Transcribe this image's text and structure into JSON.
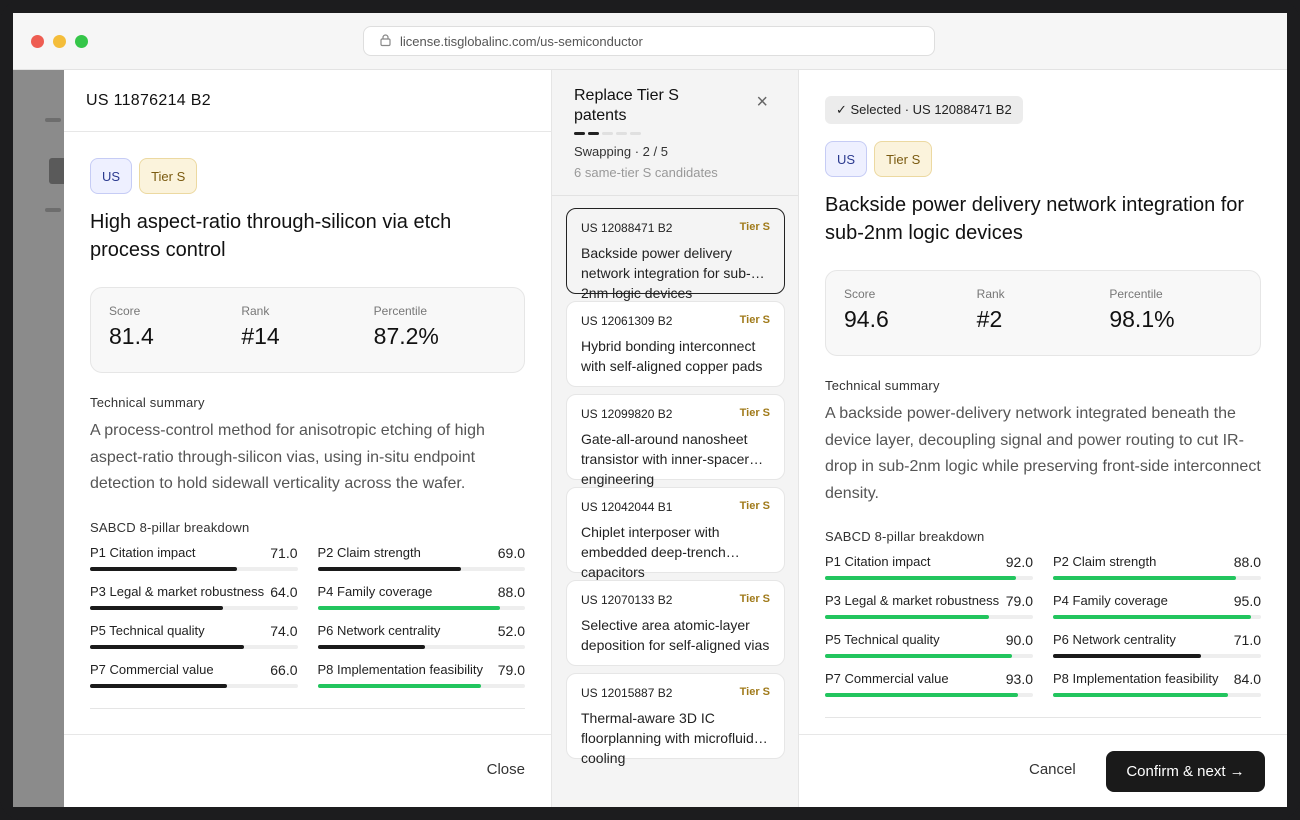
{
  "browser": {
    "url": "license.tisglobalinc.com/us-semiconductor"
  },
  "left": {
    "patent_id": "US 11876214 B2",
    "country_badge": "US",
    "tier_badge": "Tier S",
    "title": "High aspect-ratio through-silicon via etch process control",
    "stats": [
      {
        "label": "Score",
        "value": "81.4"
      },
      {
        "label": "Rank",
        "value": "#14"
      },
      {
        "label": "Percentile",
        "value": "87.2%"
      }
    ],
    "summary_heading": "Technical summary",
    "summary": "A process-control method for anisotropic etching of high aspect-ratio through-silicon vias, using in-situ endpoint detection to hold sidewall verticality across the wafer.",
    "pillars_heading": "SABCD 8-pillar breakdown",
    "pillars": [
      {
        "name": "P1 Citation impact",
        "value": "71.0",
        "pct": 71,
        "color": "#1a1a1a"
      },
      {
        "name": "P2 Claim strength",
        "value": "69.0",
        "pct": 69,
        "color": "#1a1a1a"
      },
      {
        "name": "P3 Legal & market robustness",
        "value": "64.0",
        "pct": 64,
        "color": "#1a1a1a"
      },
      {
        "name": "P4 Family coverage",
        "value": "88.0",
        "pct": 88,
        "color": "#22c55e"
      },
      {
        "name": "P5 Technical quality",
        "value": "74.0",
        "pct": 74,
        "color": "#1a1a1a"
      },
      {
        "name": "P6 Network centrality",
        "value": "52.0",
        "pct": 52,
        "color": "#1a1a1a"
      },
      {
        "name": "P7 Commercial value",
        "value": "66.0",
        "pct": 66,
        "color": "#1a1a1a"
      },
      {
        "name": "P8 Implementation feasibility",
        "value": "79.0",
        "pct": 79,
        "color": "#22c55e"
      }
    ],
    "close_label": "Close"
  },
  "middle": {
    "title": "Replace Tier S patents",
    "steps_total": 5,
    "steps_done": 2,
    "swapping": "Swapping · 2 / 5",
    "candidates_note": "6 same-tier S candidates",
    "close_icon": "×",
    "candidates": [
      {
        "id": "US 12088471 B2",
        "tier": "Tier S",
        "title": "Backside power delivery network integration for sub-2nm logic devices",
        "selected": true
      },
      {
        "id": "US 12061309 B2",
        "tier": "Tier S",
        "title": "Hybrid bonding interconnect with self-aligned copper pads",
        "selected": false
      },
      {
        "id": "US 12099820 B2",
        "tier": "Tier S",
        "title": "Gate-all-around nanosheet transistor with inner-spacer engineering",
        "selected": false
      },
      {
        "id": "US 12042044 B1",
        "tier": "Tier S",
        "title": "Chiplet interposer with embedded deep-trench capacitors",
        "selected": false
      },
      {
        "id": "US 12070133 B2",
        "tier": "Tier S",
        "title": "Selective area atomic-layer deposition for self-aligned vias",
        "selected": false
      },
      {
        "id": "US 12015887 B2",
        "tier": "Tier S",
        "title": "Thermal-aware 3D IC floorplanning with microfluidic cooling",
        "selected": false
      }
    ]
  },
  "right": {
    "selected_badge": "✓  Selected · US 12088471 B2",
    "country_badge": "US",
    "tier_badge": "Tier S",
    "title": "Backside power delivery network integration for sub-2nm logic devices",
    "stats": [
      {
        "label": "Score",
        "value": "94.6"
      },
      {
        "label": "Rank",
        "value": "#2"
      },
      {
        "label": "Percentile",
        "value": "98.1%"
      }
    ],
    "summary_heading": "Technical summary",
    "summary": "A backside power-delivery network integrated beneath the device layer, decoupling signal and power routing to cut IR-drop in sub-2nm logic while preserving front-side interconnect density.",
    "pillars_heading": "SABCD 8-pillar breakdown",
    "pillars": [
      {
        "name": "P1 Citation impact",
        "value": "92.0",
        "pct": 92,
        "color": "#22c55e"
      },
      {
        "name": "P2 Claim strength",
        "value": "88.0",
        "pct": 88,
        "color": "#22c55e"
      },
      {
        "name": "P3 Legal & market robustness",
        "value": "79.0",
        "pct": 79,
        "color": "#22c55e"
      },
      {
        "name": "P4 Family coverage",
        "value": "95.0",
        "pct": 95,
        "color": "#22c55e"
      },
      {
        "name": "P5 Technical quality",
        "value": "90.0",
        "pct": 90,
        "color": "#22c55e"
      },
      {
        "name": "P6 Network centrality",
        "value": "71.0",
        "pct": 71,
        "color": "#1a1a1a"
      },
      {
        "name": "P7 Commercial value",
        "value": "93.0",
        "pct": 93,
        "color": "#22c55e"
      },
      {
        "name": "P8 Implementation feasibility",
        "value": "84.0",
        "pct": 84,
        "color": "#22c55e"
      }
    ],
    "cancel_label": "Cancel",
    "confirm_label": "Confirm & next →"
  }
}
